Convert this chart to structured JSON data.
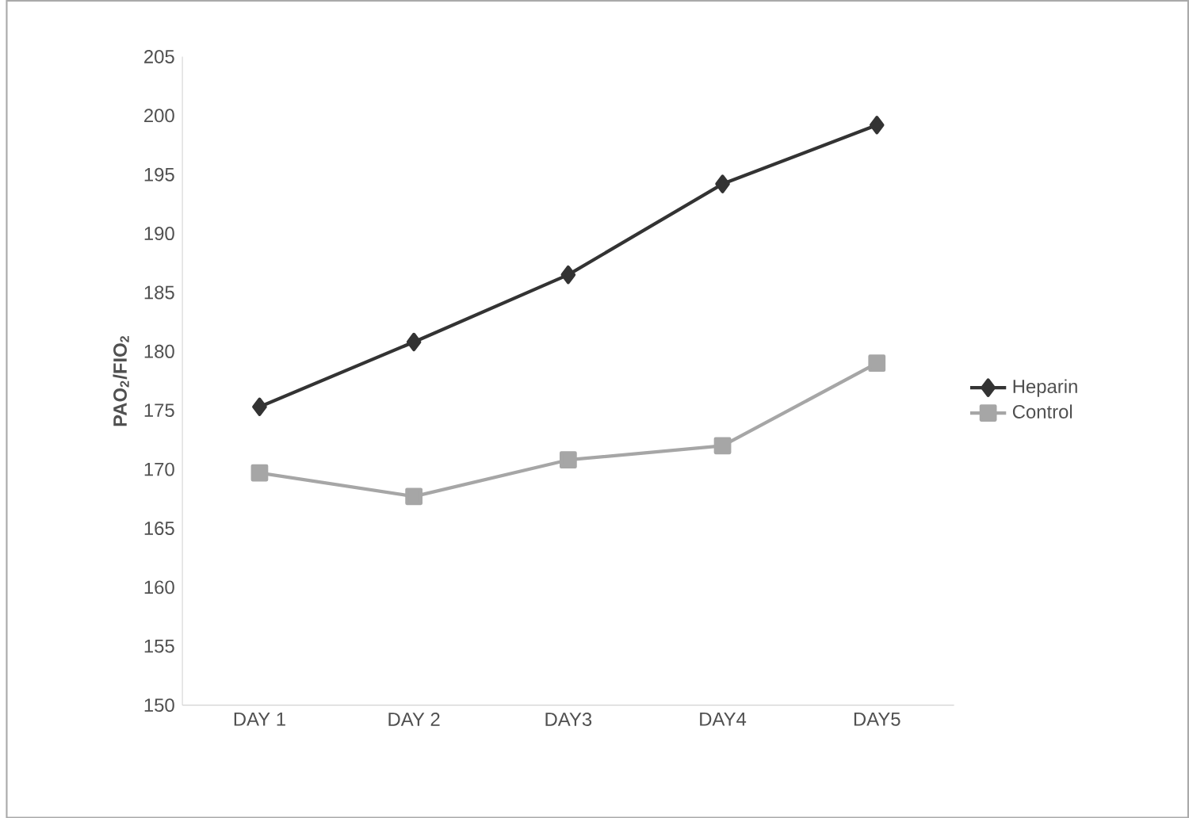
{
  "chart_data": {
    "type": "line",
    "ylabel": "PAO$_{2}$/FIO$_{2}$",
    "categories": [
      "DAY 1",
      "DAY 2",
      "DAY3",
      "DAY4",
      "DAY5"
    ],
    "series": [
      {
        "name": "Heparin",
        "color": "#333333",
        "marker": "diamond",
        "values": [
          175.3,
          180.8,
          186.5,
          194.2,
          199.2
        ]
      },
      {
        "name": "Control",
        "color": "#a6a6a6",
        "marker": "square",
        "values": [
          169.7,
          167.7,
          170.8,
          172.0,
          179.0
        ]
      }
    ],
    "ylim": [
      150,
      205
    ],
    "yticks": [
      150,
      155,
      160,
      165,
      170,
      175,
      180,
      185,
      190,
      195,
      200,
      205
    ],
    "grid": false,
    "legend": "right",
    "line_style": "solid"
  }
}
